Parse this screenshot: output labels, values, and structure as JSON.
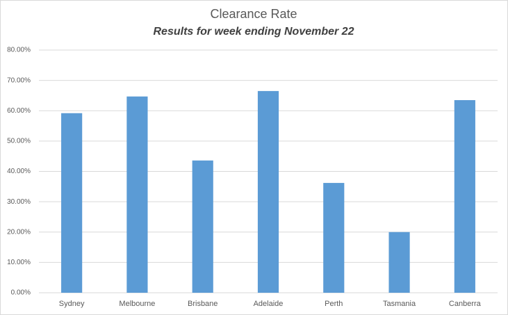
{
  "chart_data": {
    "type": "bar",
    "title": "Clearance Rate",
    "subtitle": "Results for week ending November 22",
    "categories": [
      "Sydney",
      "Melbourne",
      "Brisbane",
      "Adelaide",
      "Perth",
      "Tasmania",
      "Canberra"
    ],
    "values": [
      59.2,
      64.7,
      43.6,
      66.5,
      36.2,
      20.0,
      63.5
    ],
    "color": "#5b9bd5",
    "ylim": [
      0,
      80
    ],
    "yticks": [
      {
        "value": 0,
        "label": "0.00%"
      },
      {
        "value": 10,
        "label": "10.00%"
      },
      {
        "value": 20,
        "label": "20.00%"
      },
      {
        "value": 30,
        "label": "30.00%"
      },
      {
        "value": 40,
        "label": "40.00%"
      },
      {
        "value": 50,
        "label": "50.00%"
      },
      {
        "value": 60,
        "label": "60.00%"
      },
      {
        "value": 70,
        "label": "70.00%"
      },
      {
        "value": 80,
        "label": "80.00%"
      }
    ],
    "grid": true
  }
}
